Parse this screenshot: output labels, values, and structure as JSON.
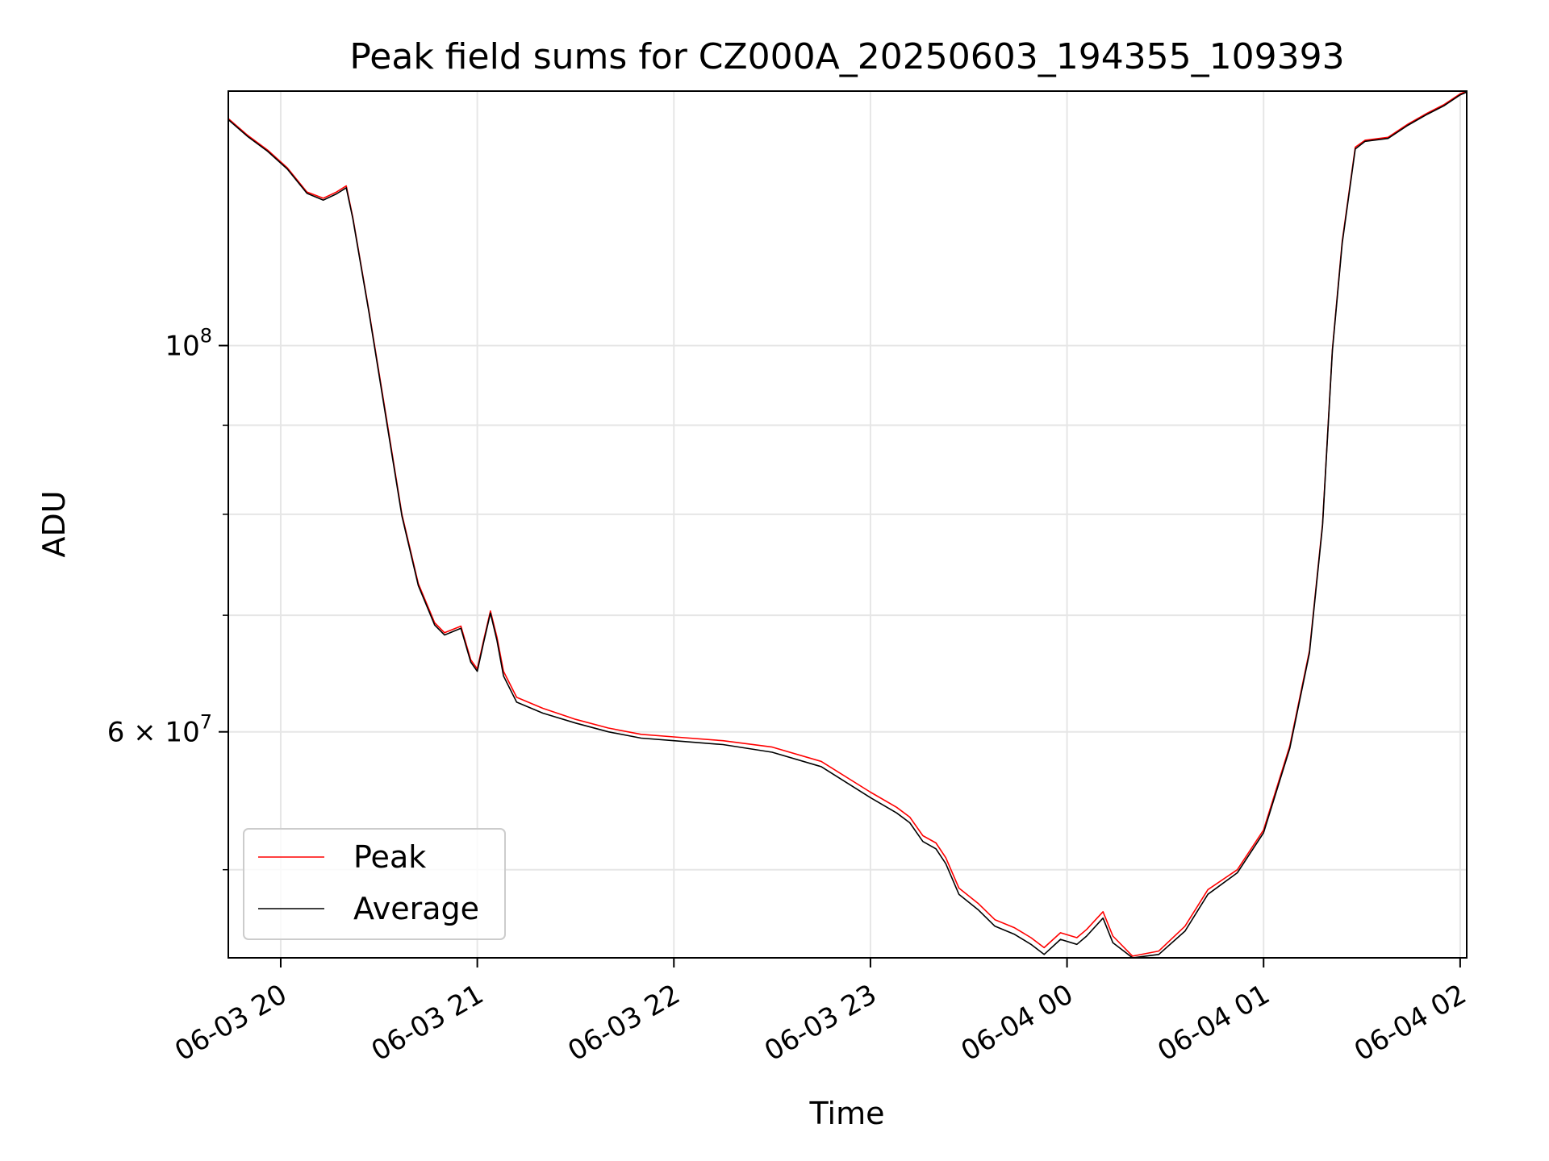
{
  "chart_data": {
    "type": "line",
    "title": "Peak field sums for CZ000A_20250603_194355_109393",
    "xlabel": "Time",
    "ylabel": "ADU",
    "y_scale": "log",
    "grid": true,
    "legend_position": "lower-left",
    "xlim": [
      "2025-06-03 19:44",
      "2025-06-04 02:02"
    ],
    "ylim": [
      44500000,
      140000000
    ],
    "x_ticks": [
      {
        "value": "2025-06-03 20:00",
        "label": "06-03 20"
      },
      {
        "value": "2025-06-03 21:00",
        "label": "06-03 21"
      },
      {
        "value": "2025-06-03 22:00",
        "label": "06-03 22"
      },
      {
        "value": "2025-06-03 23:00",
        "label": "06-03 23"
      },
      {
        "value": "2025-06-04 00:00",
        "label": "06-04 00"
      },
      {
        "value": "2025-06-04 01:00",
        "label": "06-04 01"
      },
      {
        "value": "2025-06-04 02:00",
        "label": "06-04 02"
      }
    ],
    "y_major_ticks": [
      {
        "value": 60000000,
        "label": "6×10⁷",
        "base": "6 × 10",
        "exp": "7"
      },
      {
        "value": 100000000,
        "label": "10⁸",
        "base": "10",
        "exp": "8"
      }
    ],
    "y_minor_ticks": [
      50000000,
      70000000,
      80000000,
      90000000
    ],
    "series": [
      {
        "name": "Peak",
        "color": "#ff0000",
        "x": [
          "2025-06-03 19:44",
          "2025-06-03 19:50",
          "2025-06-03 19:56",
          "2025-06-03 20:02",
          "2025-06-03 20:08",
          "2025-06-03 20:13",
          "2025-06-03 20:17",
          "2025-06-03 20:20",
          "2025-06-03 20:22",
          "2025-06-03 20:27",
          "2025-06-03 20:32",
          "2025-06-03 20:37",
          "2025-06-03 20:42",
          "2025-06-03 20:47",
          "2025-06-03 20:50",
          "2025-06-03 20:55",
          "2025-06-03 20:58",
          "2025-06-03 21:00",
          "2025-06-03 21:02",
          "2025-06-03 21:04",
          "2025-06-03 21:06",
          "2025-06-03 21:08",
          "2025-06-03 21:12",
          "2025-06-03 21:20",
          "2025-06-03 21:30",
          "2025-06-03 21:40",
          "2025-06-03 21:50",
          "2025-06-03 22:00",
          "2025-06-03 22:15",
          "2025-06-03 22:30",
          "2025-06-03 22:45",
          "2025-06-03 23:00",
          "2025-06-03 23:08",
          "2025-06-03 23:12",
          "2025-06-03 23:16",
          "2025-06-03 23:20",
          "2025-06-03 23:23",
          "2025-06-03 23:27",
          "2025-06-03 23:33",
          "2025-06-03 23:38",
          "2025-06-03 23:44",
          "2025-06-03 23:49",
          "2025-06-03 23:53",
          "2025-06-03 23:58",
          "2025-06-04 00:03",
          "2025-06-04 00:06",
          "2025-06-04 00:11",
          "2025-06-04 00:14",
          "2025-06-04 00:20",
          "2025-06-04 00:28",
          "2025-06-04 00:36",
          "2025-06-04 00:43",
          "2025-06-04 00:52",
          "2025-06-04 01:00",
          "2025-06-04 01:08",
          "2025-06-04 01:14",
          "2025-06-04 01:18",
          "2025-06-04 01:21",
          "2025-06-04 01:24",
          "2025-06-04 01:28",
          "2025-06-04 01:31",
          "2025-06-04 01:38",
          "2025-06-04 01:44",
          "2025-06-04 01:50",
          "2025-06-04 01:55",
          "2025-06-04 02:00",
          "2025-06-04 02:02"
        ],
        "y": [
          135000000,
          132000000,
          129500000,
          126500000,
          122500000,
          121500000,
          122500000,
          123500000,
          118500000,
          104500000,
          91500000,
          80000000,
          73000000,
          69300000,
          68400000,
          69000000,
          66000000,
          65200000,
          67800000,
          70400000,
          68000000,
          65000000,
          62800000,
          61900000,
          61000000,
          60300000,
          59800000,
          59600000,
          59300000,
          58800000,
          57700000,
          55400000,
          54300000,
          53600000,
          52300000,
          51800000,
          50800000,
          48800000,
          47800000,
          46800000,
          46300000,
          45700000,
          45100000,
          46000000,
          45700000,
          46200000,
          47300000,
          45800000,
          44600000,
          44900000,
          46400000,
          48700000,
          50000000,
          52700000,
          58900000,
          66800000,
          79000000,
          99500000,
          114800000,
          130000000,
          131200000,
          131700000,
          134000000,
          136000000,
          137500000,
          139500000,
          140000000
        ]
      },
      {
        "name": "Average",
        "color": "#000000",
        "x": [
          "2025-06-03 19:44",
          "2025-06-03 19:50",
          "2025-06-03 19:56",
          "2025-06-03 20:02",
          "2025-06-03 20:08",
          "2025-06-03 20:13",
          "2025-06-03 20:17",
          "2025-06-03 20:20",
          "2025-06-03 20:22",
          "2025-06-03 20:27",
          "2025-06-03 20:32",
          "2025-06-03 20:37",
          "2025-06-03 20:42",
          "2025-06-03 20:47",
          "2025-06-03 20:50",
          "2025-06-03 20:55",
          "2025-06-03 20:58",
          "2025-06-03 21:00",
          "2025-06-03 21:02",
          "2025-06-03 21:04",
          "2025-06-03 21:06",
          "2025-06-03 21:08",
          "2025-06-03 21:12",
          "2025-06-03 21:20",
          "2025-06-03 21:30",
          "2025-06-03 21:40",
          "2025-06-03 21:50",
          "2025-06-03 22:00",
          "2025-06-03 22:15",
          "2025-06-03 22:30",
          "2025-06-03 22:45",
          "2025-06-03 23:00",
          "2025-06-03 23:08",
          "2025-06-03 23:12",
          "2025-06-03 23:16",
          "2025-06-03 23:20",
          "2025-06-03 23:23",
          "2025-06-03 23:27",
          "2025-06-03 23:33",
          "2025-06-03 23:38",
          "2025-06-03 23:44",
          "2025-06-03 23:49",
          "2025-06-03 23:53",
          "2025-06-03 23:58",
          "2025-06-04 00:03",
          "2025-06-04 00:06",
          "2025-06-04 00:11",
          "2025-06-04 00:14",
          "2025-06-04 00:20",
          "2025-06-04 00:28",
          "2025-06-04 00:36",
          "2025-06-04 00:43",
          "2025-06-04 00:52",
          "2025-06-04 01:00",
          "2025-06-04 01:08",
          "2025-06-04 01:14",
          "2025-06-04 01:18",
          "2025-06-04 01:21",
          "2025-06-04 01:24",
          "2025-06-04 01:28",
          "2025-06-04 01:31",
          "2025-06-04 01:38",
          "2025-06-04 01:44",
          "2025-06-04 01:50",
          "2025-06-04 01:55",
          "2025-06-04 02:00",
          "2025-06-04 02:02"
        ],
        "y": [
          134800000,
          131800000,
          129300000,
          126300000,
          122300000,
          121200000,
          122200000,
          123200000,
          118300000,
          104300000,
          91200000,
          79800000,
          72800000,
          69100000,
          68200000,
          68800000,
          65800000,
          65000000,
          67600000,
          70200000,
          67700000,
          64600000,
          62400000,
          61500000,
          60700000,
          60000000,
          59500000,
          59300000,
          59000000,
          58400000,
          57300000,
          55000000,
          53900000,
          53200000,
          51900000,
          51400000,
          50400000,
          48400000,
          47400000,
          46400000,
          45900000,
          45300000,
          44700000,
          45600000,
          45300000,
          45800000,
          46900000,
          45400000,
          44500000,
          44700000,
          46100000,
          48400000,
          49800000,
          52500000,
          58700000,
          66600000,
          78800000,
          99300000,
          114500000,
          129700000,
          131000000,
          131500000,
          133800000,
          135800000,
          137300000,
          139300000,
          139800000
        ]
      }
    ],
    "legend": [
      {
        "label": "Peak",
        "color": "#ff0000"
      },
      {
        "label": "Average",
        "color": "#000000"
      }
    ]
  }
}
